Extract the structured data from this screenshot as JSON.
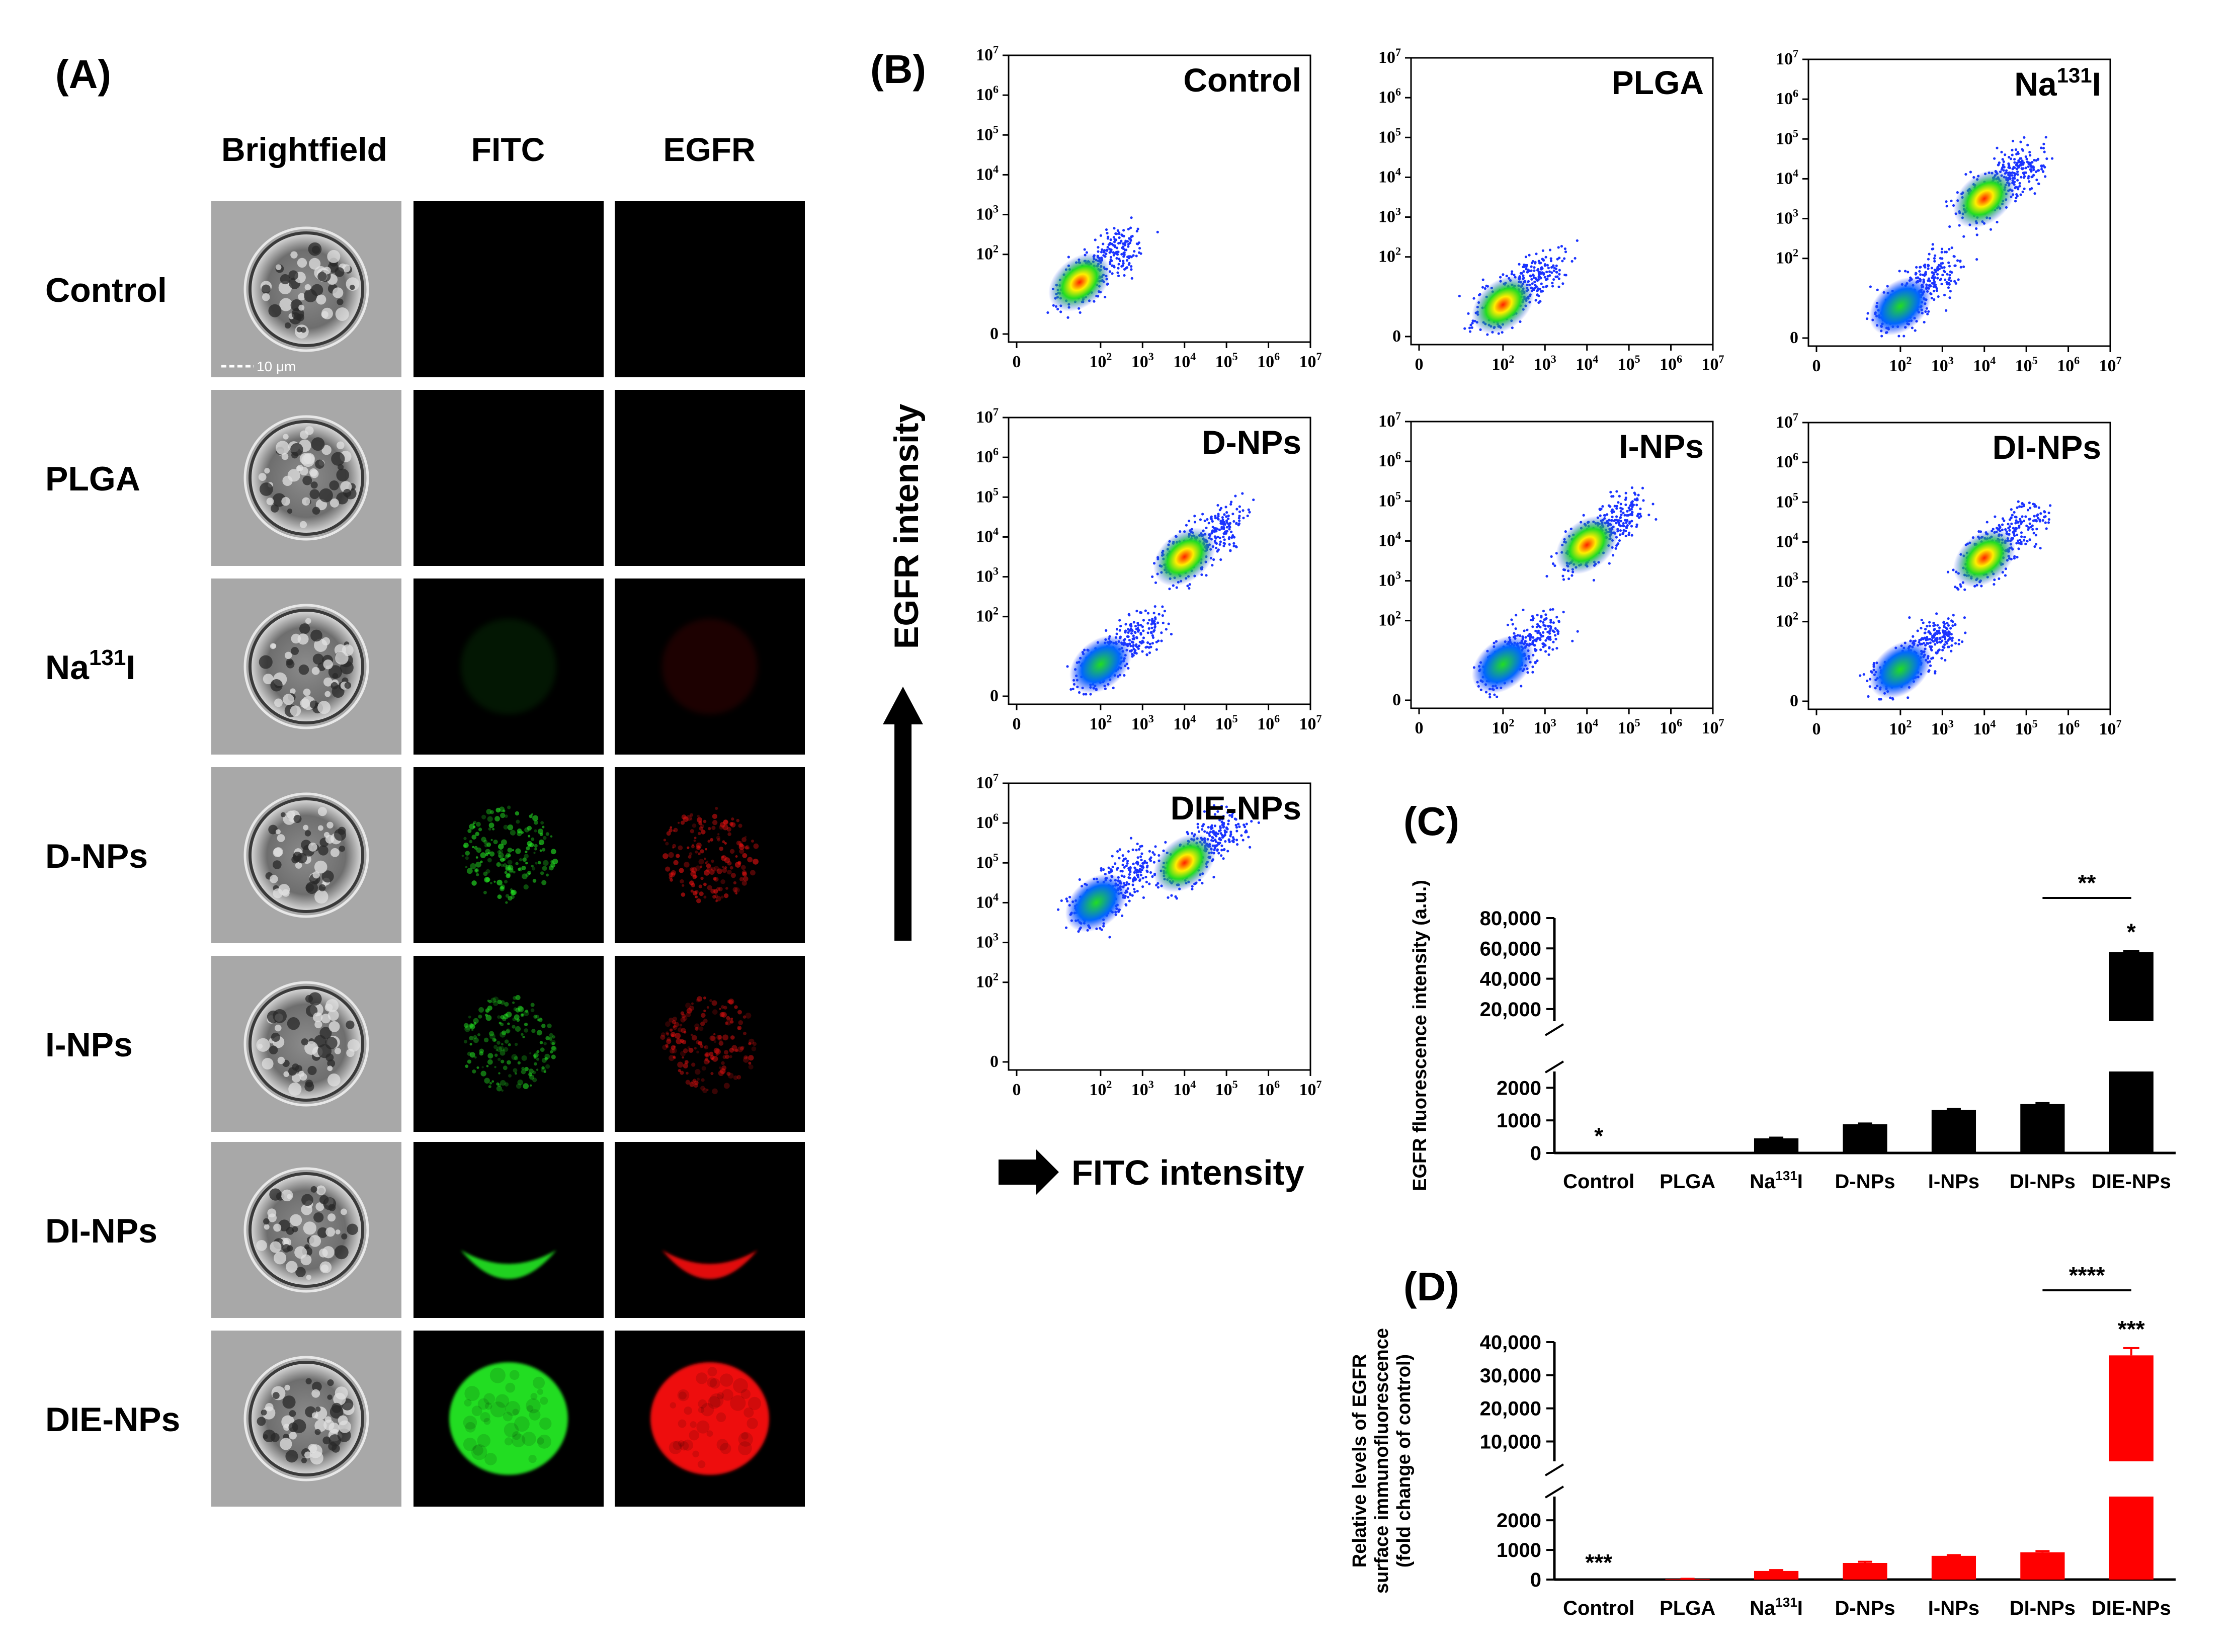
{
  "panels": {
    "A": "(A)",
    "B": "(B)",
    "C": "(C)",
    "D": "(D)"
  },
  "microscopy": {
    "columns": [
      "Brightfield",
      "FITC",
      "EGFR"
    ],
    "rows": [
      {
        "label": "Control",
        "fitc_level": 0.0,
        "egfr_level": 0.0,
        "pattern": "none"
      },
      {
        "label": "PLGA",
        "fitc_level": 0.0,
        "egfr_level": 0.0,
        "pattern": "none"
      },
      {
        "label": "Na",
        "sup": "131",
        "suffix": "I",
        "fitc_level": 0.1,
        "egfr_level": 0.12,
        "pattern": "faint"
      },
      {
        "label": "D-NPs",
        "fitc_level": 0.45,
        "egfr_level": 0.4,
        "pattern": "speckle"
      },
      {
        "label": "I-NPs",
        "fitc_level": 0.4,
        "egfr_level": 0.35,
        "pattern": "speckle"
      },
      {
        "label": "DI-NPs",
        "fitc_level": 0.7,
        "egfr_level": 0.7,
        "pattern": "crescent"
      },
      {
        "label": "DIE-NPs",
        "fitc_level": 1.0,
        "egfr_level": 1.0,
        "pattern": "full"
      }
    ],
    "scale_bar": "10 μm",
    "colors": {
      "fitc": "#22dd22",
      "egfr": "#ee1111"
    }
  },
  "flow": {
    "y_axis_label": "EGFR intensity",
    "x_axis_label": "FITC intensity",
    "tick_labels": [
      "0",
      "10",
      "10",
      "10",
      "10",
      "10",
      "10"
    ],
    "tick_exponents": [
      "",
      "2",
      "3",
      "4",
      "5",
      "6",
      "7"
    ],
    "plots": [
      {
        "title": "Control",
        "scale": "log",
        "populations": [
          {
            "x": 1.5,
            "y": 1.3,
            "label": "low"
          }
        ]
      },
      {
        "title": "PLGA",
        "scale": "log",
        "populations": [
          {
            "x": 2.0,
            "y": 0.8,
            "label": "low"
          }
        ]
      },
      {
        "title": "Na",
        "title_sup": "131",
        "title_suffix": "I",
        "scale": "log",
        "populations": [
          {
            "x": 2.0,
            "y": 0.8,
            "label": "low"
          },
          {
            "x": 4.0,
            "y": 3.5,
            "label": "high"
          }
        ]
      },
      {
        "title": "D-NPs",
        "scale": "log",
        "populations": [
          {
            "x": 2.0,
            "y": 0.8,
            "label": "low"
          },
          {
            "x": 4.0,
            "y": 3.5,
            "label": "high"
          }
        ]
      },
      {
        "title": "I-NPs",
        "scale": "log",
        "populations": [
          {
            "x": 2.0,
            "y": 0.9,
            "label": "low"
          },
          {
            "x": 4.0,
            "y": 3.9,
            "label": "high"
          }
        ]
      },
      {
        "title": "DI-NPs",
        "scale": "log",
        "populations": [
          {
            "x": 2.0,
            "y": 0.8,
            "label": "low"
          },
          {
            "x": 4.0,
            "y": 3.6,
            "label": "high"
          }
        ]
      },
      {
        "title": "DIE-NPs",
        "scale": "log",
        "populations": [
          {
            "x": 1.9,
            "y": 4.0,
            "label": "low"
          },
          {
            "x": 4.0,
            "y": 5.0,
            "label": "high"
          }
        ]
      }
    ]
  },
  "chart_data": [
    {
      "type": "bar",
      "panel": "C",
      "categories": [
        "Control",
        "PLGA",
        "Na131I",
        "D-NPs",
        "I-NPs",
        "DI-NPs",
        "DIE-NPs"
      ],
      "values": [
        0,
        0,
        450,
        880,
        1320,
        1500,
        57500
      ],
      "errors": [
        0,
        0,
        20,
        25,
        30,
        30,
        700
      ],
      "ylabel": "EGFR fluorescence intensity (a.u.)",
      "y_break": {
        "lower": [
          0,
          2500
        ],
        "upper": [
          12000,
          80000
        ]
      },
      "yticks_lower": [
        "0",
        "1000",
        "2000"
      ],
      "yticks_upper": [
        "20,000",
        "40,000",
        "60,000",
        "80,000"
      ],
      "color": "#000000",
      "annotations": {
        "control_mark": "*",
        "top_mark": "*",
        "bracket_mark": "**"
      }
    },
    {
      "type": "bar",
      "panel": "D",
      "categories": [
        "Control",
        "PLGA",
        "Na131I",
        "D-NPs",
        "I-NPs",
        "DI-NPs",
        "DIE-NPs"
      ],
      "values": [
        0,
        20,
        290,
        560,
        800,
        920,
        36000
      ],
      "errors": [
        0,
        5,
        30,
        40,
        25,
        40,
        2200
      ],
      "ylabel_lines": [
        "Relative levels of EGFR",
        "surface immunofluorescence",
        "(fold change of control)"
      ],
      "y_break": {
        "lower": [
          0,
          2800
        ],
        "upper": [
          4000,
          40000
        ]
      },
      "yticks_lower": [
        "0",
        "1000",
        "2000"
      ],
      "yticks_upper": [
        "10,000",
        "20,000",
        "30,000",
        "40,000"
      ],
      "color": "#ff0000",
      "annotations": {
        "control_mark": "***",
        "top_mark": "***",
        "bracket_mark": "****"
      }
    }
  ]
}
